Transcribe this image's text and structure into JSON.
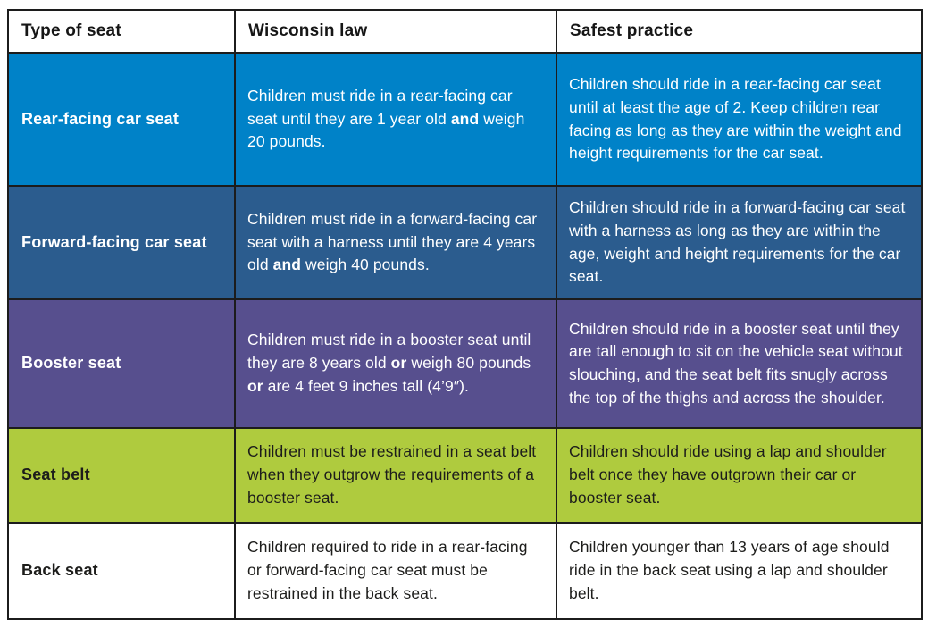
{
  "table": {
    "border_color": "#1c1c1c",
    "header_text_color": "#161616",
    "columns": [
      {
        "label": "Type of seat"
      },
      {
        "label": "Wisconsin law"
      },
      {
        "label": "Safest practice"
      }
    ],
    "rows": [
      {
        "type": "Rear-facing car seat",
        "bg": "#0082C8",
        "text_color": "#FFFFFF",
        "law": [
          {
            "text": "Children must ride in a rear-facing car seat until they are 1 year old ",
            "bold": false
          },
          {
            "text": "and",
            "bold": true
          },
          {
            "text": " weigh 20 pounds.",
            "bold": false
          }
        ],
        "practice": "Children should ride in a rear-facing car seat until at least the age of 2. Keep children rear facing as long as they are within the weight and height requirements for the car seat."
      },
      {
        "type": "Forward-facing car seat",
        "bg": "#2B5C8E",
        "text_color": "#FFFFFF",
        "law": [
          {
            "text": "Children must ride in a forward-facing car seat with a harness until they are 4 years old ",
            "bold": false
          },
          {
            "text": "and",
            "bold": true
          },
          {
            "text": " weigh 40 pounds.",
            "bold": false
          }
        ],
        "practice": "Children should ride in a forward-facing car seat with a harness as long as they are within the age, weight and height requirements for the car seat."
      },
      {
        "type": "Booster seat",
        "bg": "#574F8E",
        "text_color": "#FFFFFF",
        "law": [
          {
            "text": "Children must ride in a booster seat until they are 8 years old ",
            "bold": false
          },
          {
            "text": "or",
            "bold": true
          },
          {
            "text": " weigh 80 pounds ",
            "bold": false
          },
          {
            "text": "or",
            "bold": true
          },
          {
            "text": " are 4 feet 9 inches tall (4’9″).",
            "bold": false
          }
        ],
        "practice": "Children should ride in a booster seat until they are tall enough to sit on the vehicle seat without slouching, and the seat belt fits snugly across the top of the thighs and across the shoulder."
      },
      {
        "type": "Seat belt",
        "bg": "#AFCB3E",
        "text_color": "#1D1D1B",
        "law": [
          {
            "text": "Children must be restrained in a seat belt when they outgrow the requirements of a booster seat.",
            "bold": false
          }
        ],
        "practice": "Children should ride using a lap and shoulder belt once they have outgrown their car or booster seat."
      },
      {
        "type": "Back seat",
        "bg": "#FFFFFF",
        "text_color": "#1D1D1B",
        "law": [
          {
            "text": "Children required to ride in a rear-facing or forward-facing car seat must be restrained in the back seat.",
            "bold": false
          }
        ],
        "practice": "Children younger than 13 years of age should ride in the back seat using a lap and shoulder belt."
      }
    ]
  }
}
